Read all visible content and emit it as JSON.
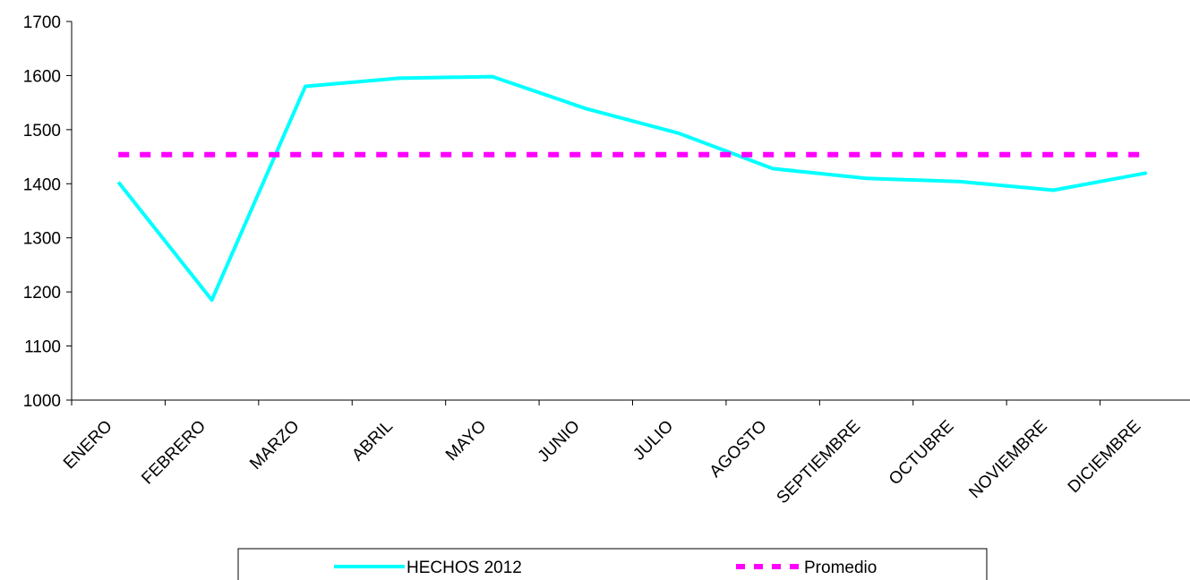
{
  "chart_data": {
    "type": "line",
    "categories": [
      "ENERO",
      "FEBRERO",
      "MARZO",
      "ABRIL",
      "MAYO",
      "JUNIO",
      "JULIO",
      "AGOSTO",
      "SEPTIEMBRE",
      "OCTUBRE",
      "NOVIEMBRE",
      "DICIEMBRE"
    ],
    "series": [
      {
        "name": "HECHOS 2012",
        "values": [
          1403,
          1185,
          1580,
          1595,
          1598,
          1539,
          1493,
          1428,
          1410,
          1404,
          1388,
          1420
        ],
        "color": "#00FFFF",
        "style": "solid"
      },
      {
        "name": "Promedio",
        "values": [
          1454,
          1454,
          1454,
          1454,
          1454,
          1454,
          1454,
          1454,
          1454,
          1454,
          1454,
          1454
        ],
        "color": "#FF00FF",
        "style": "dashed"
      }
    ],
    "ylim": [
      1000,
      1700
    ],
    "yticks": [
      1000,
      1100,
      1200,
      1300,
      1400,
      1500,
      1600,
      1700
    ],
    "title": "",
    "xlabel": "",
    "ylabel": "",
    "grid": false,
    "legend_position": "bottom"
  }
}
